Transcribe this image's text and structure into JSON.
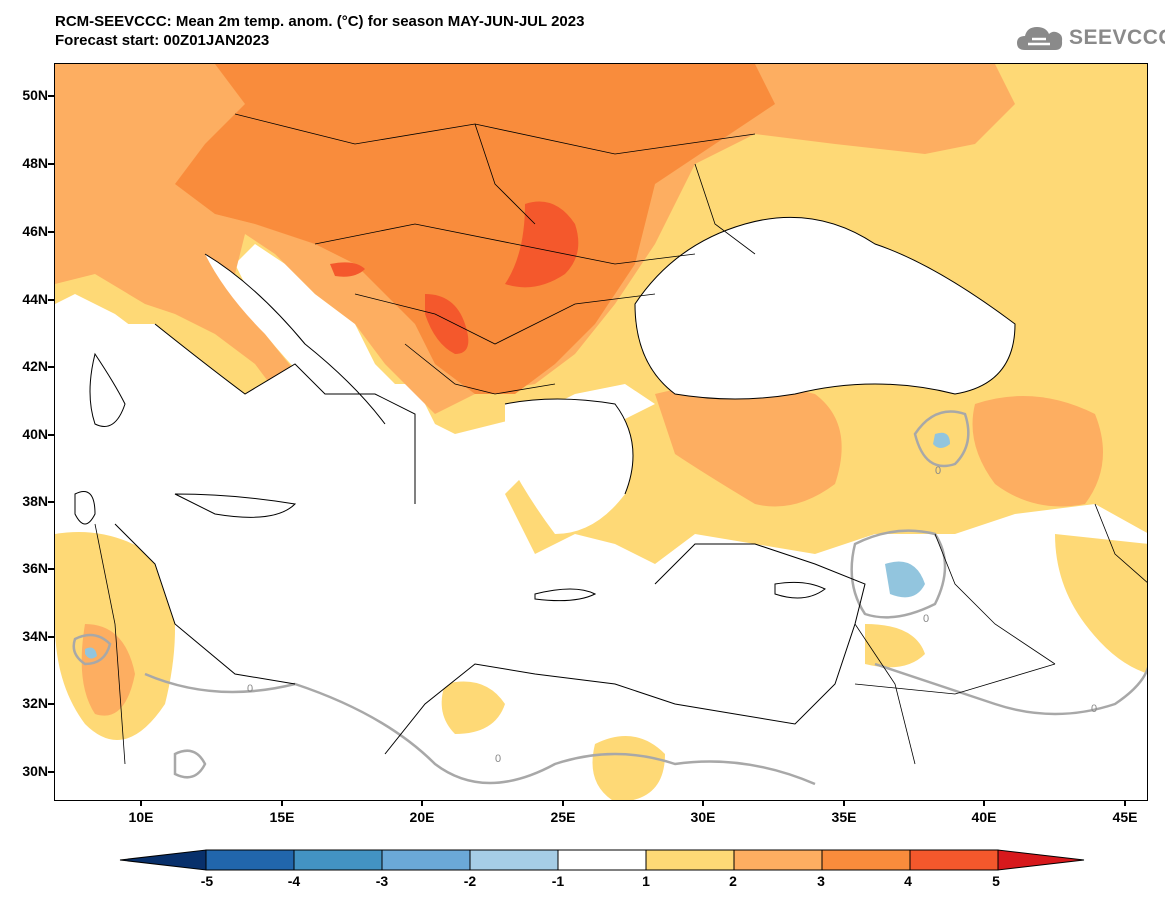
{
  "header": {
    "title_line1": "RCM-SEEVCCC: Mean 2m temp. anom. (°C) for season MAY-JUN-JUL 2023",
    "title_line2": "Forecast start: 00Z01JAN2023"
  },
  "logo": {
    "text": "SEEVCCC",
    "icon": "cloud-icon"
  },
  "axes": {
    "lat_labels": [
      "50N",
      "48N",
      "46N",
      "44N",
      "42N",
      "40N",
      "38N",
      "36N",
      "34N",
      "32N",
      "30N"
    ],
    "lon_labels": [
      "10E",
      "15E",
      "20E",
      "25E",
      "30E",
      "35E",
      "40E",
      "45E"
    ]
  },
  "contour_label": "0",
  "colorbar": {
    "labels": [
      "-5",
      "-4",
      "-3",
      "-2",
      "-1",
      "1",
      "2",
      "3",
      "4",
      "5"
    ],
    "colors": [
      "#08306b",
      "#2166ac",
      "#4393c3",
      "#6ba9d8",
      "#a6cde6",
      "#ffffff",
      "#fed976",
      "#fdae61",
      "#f98c3c",
      "#f4582c",
      "#d7191c"
    ]
  },
  "palette": {
    "sea": "#ffffff",
    "anom_1_2": "#fed976",
    "anom_2_3": "#fdae61",
    "anom_3_4": "#f98c3c",
    "anom_4_5": "#f4582c",
    "anom_neg": "#92c5de",
    "contour_gray": "#a8a8a8"
  }
}
